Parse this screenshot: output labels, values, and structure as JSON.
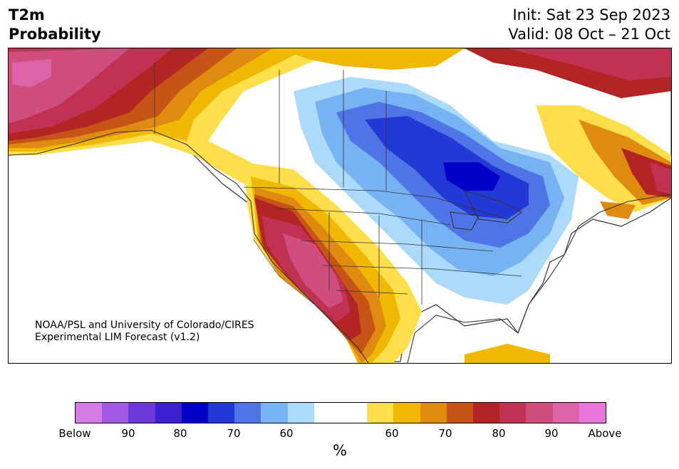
{
  "title": {
    "left_line1": "T2m",
    "left_line2": "Probability",
    "right_line1": "Init: Sat 23 Sep 2023",
    "right_line2": "Valid: 08 Oct – 21 Oct"
  },
  "credit": {
    "line1": "NOAA/PSL and University of Colorado/CIRES",
    "line2": "Experimental LIM Forecast (v1.2)"
  },
  "colorbar": {
    "colors": [
      "#d57be8",
      "#a158e2",
      "#6c39d8",
      "#3c1fd0",
      "#0000c8",
      "#2339d6",
      "#4f74e6",
      "#77b2f3",
      "#acdafb",
      "#ffffff",
      "#ffffff",
      "#fede4a",
      "#f1b803",
      "#df8a10",
      "#c65417",
      "#b32424",
      "#c03152",
      "#cf4e7e",
      "#dd63a8",
      "#e875d8"
    ],
    "ticks": [
      "Below",
      "90",
      "80",
      "70",
      "60",
      "60",
      "70",
      "80",
      "90",
      "Above"
    ],
    "unit": "%"
  },
  "map_colors": {
    "above_60": "#fede4a",
    "above_65": "#f1b803",
    "above_70": "#df8a10",
    "above_75": "#c65417",
    "above_80": "#b32424",
    "above_85": "#c03152",
    "above_90": "#cf4e7e",
    "above_95": "#dd63a8",
    "below_60": "#acdafb",
    "below_65": "#77b2f3",
    "below_70": "#4f74e6",
    "below_75": "#2339d6",
    "below_80": "#0000c8",
    "ocean": "#ffffff",
    "coastline": "#333333"
  }
}
